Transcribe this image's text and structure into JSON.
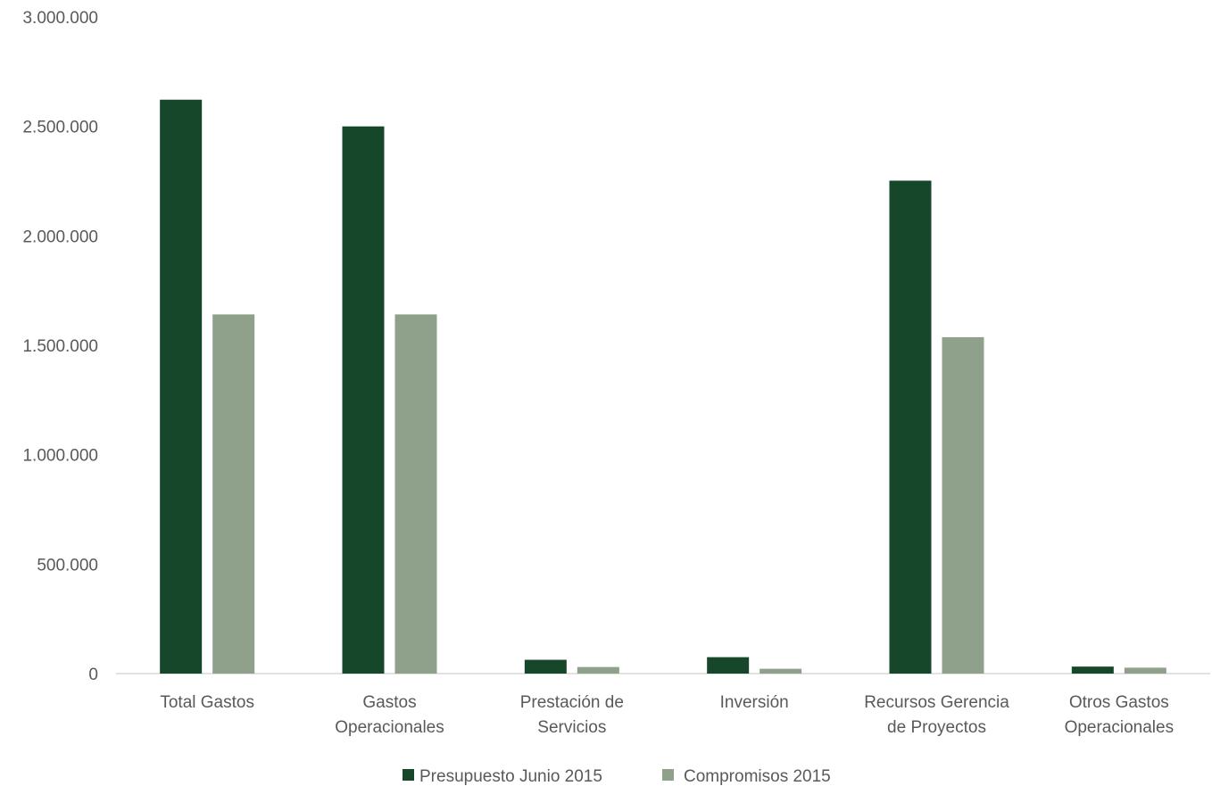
{
  "chart_data": {
    "type": "bar",
    "categories": [
      [
        "Total Gastos"
      ],
      [
        "Gastos",
        "Operacionales"
      ],
      [
        "Prestación de",
        "Servicios"
      ],
      [
        "Inversión"
      ],
      [
        "Recursos Gerencia",
        "de Proyectos"
      ],
      [
        "Otros Gastos",
        "Operacionales"
      ]
    ],
    "series": [
      {
        "name": "Presupuesto Junio 2015",
        "color": "#17472a",
        "values": [
          2622000,
          2500000,
          63000,
          75000,
          2252000,
          32000
        ]
      },
      {
        "name": "Compromisos 2015",
        "color": "#8fa08b",
        "values": [
          1641000,
          1641000,
          30000,
          22000,
          1537000,
          27000
        ]
      }
    ],
    "ylim": [
      0,
      3000000
    ],
    "yticks": [
      {
        "value": 0,
        "label": "0"
      },
      {
        "value": 500000,
        "label": "500.000"
      },
      {
        "value": 1000000,
        "label": "1.000.000"
      },
      {
        "value": 1500000,
        "label": "1.500.000"
      },
      {
        "value": 2000000,
        "label": "2.000.000"
      },
      {
        "value": 2500000,
        "label": "2.500.000"
      },
      {
        "value": 3000000,
        "label": "3.000.000"
      }
    ],
    "grid": false,
    "legend_position": "bottom"
  }
}
